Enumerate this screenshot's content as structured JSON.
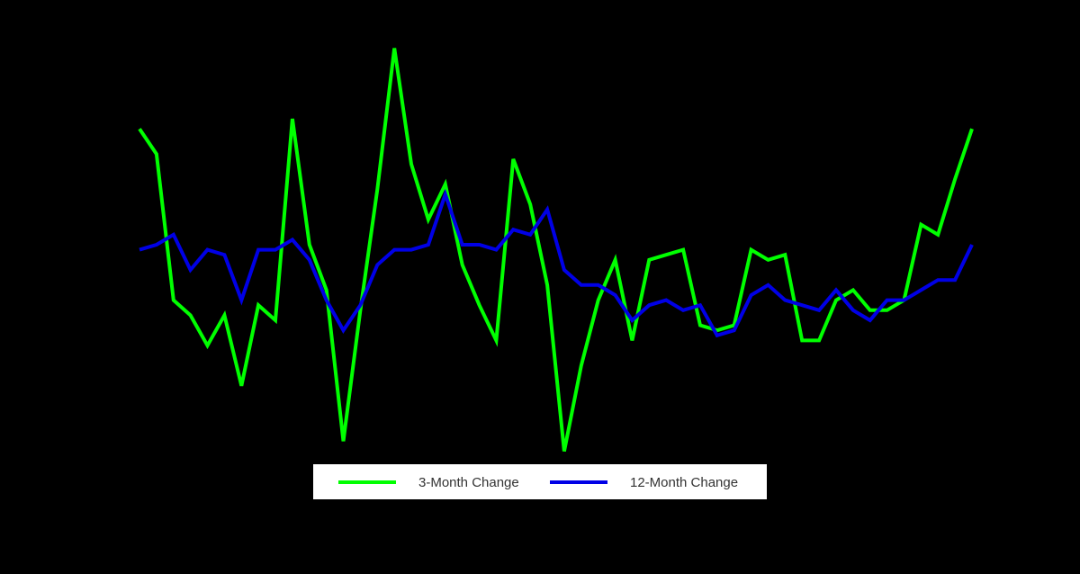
{
  "chart_data": {
    "type": "line",
    "title": "",
    "xlabel": "",
    "ylabel": "",
    "ylim": [
      -5,
      5
    ],
    "grid": false,
    "legend_placement": "bottom",
    "background_color": "#000000",
    "series": [
      {
        "name": "3-Month Change",
        "color": "#00ff00",
        "values": [
          2.8,
          2.3,
          -0.6,
          -0.9,
          -1.5,
          -0.9,
          -2.3,
          -0.7,
          -1.0,
          3.0,
          0.5,
          -0.4,
          -3.4,
          -0.8,
          1.6,
          4.4,
          2.1,
          1.0,
          1.7,
          0.1,
          -0.7,
          -1.4,
          2.2,
          1.3,
          -0.3,
          -3.6,
          -1.9,
          -0.6,
          0.2,
          -1.4,
          0.2,
          0.3,
          0.4,
          -1.1,
          -1.2,
          -1.1,
          0.4,
          0.2,
          0.3,
          -1.4,
          -1.4,
          -0.6,
          -0.4,
          -0.8,
          -0.8,
          -0.6,
          0.9,
          0.7,
          1.8,
          2.8
        ]
      },
      {
        "name": "12-Month Change",
        "color": "#0000e6",
        "values": [
          0.4,
          0.5,
          0.7,
          0.0,
          0.4,
          0.3,
          -0.6,
          0.4,
          0.4,
          0.6,
          0.2,
          -0.6,
          -1.2,
          -0.7,
          0.1,
          0.4,
          0.4,
          0.5,
          1.5,
          0.5,
          0.5,
          0.4,
          0.8,
          0.7,
          1.2,
          0.0,
          -0.3,
          -0.3,
          -0.5,
          -1.0,
          -0.7,
          -0.6,
          -0.8,
          -0.7,
          -1.3,
          -1.2,
          -0.5,
          -0.3,
          -0.6,
          -0.7,
          -0.8,
          -0.4,
          -0.8,
          -1.0,
          -0.6,
          -0.6,
          -0.4,
          -0.2,
          -0.2,
          0.5
        ]
      }
    ]
  }
}
